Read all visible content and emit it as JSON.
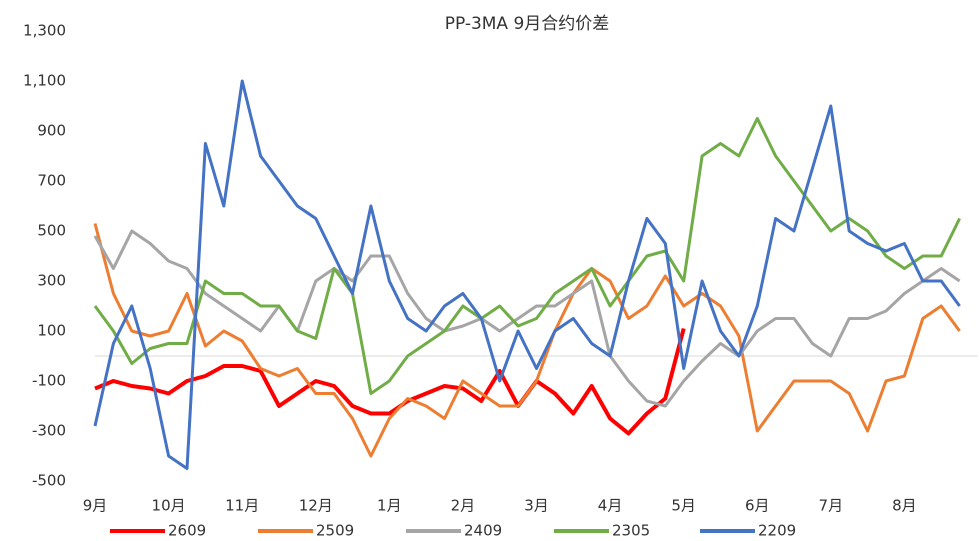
{
  "chart_data": {
    "type": "line",
    "title": "PP-3MA 9月合约价差",
    "categories": [
      "9月",
      null,
      null,
      null,
      "10月",
      null,
      null,
      null,
      "11月",
      null,
      null,
      null,
      "12月",
      null,
      null,
      null,
      "1月",
      null,
      null,
      null,
      "2月",
      null,
      null,
      null,
      "3月",
      null,
      null,
      null,
      "4月",
      null,
      null,
      null,
      "5月",
      null,
      null,
      null,
      "6月",
      null,
      null,
      null,
      "7月",
      null,
      null,
      null,
      "8月",
      null,
      null,
      null
    ],
    "ylim": [
      -500,
      1300
    ],
    "yticks": [
      -500,
      -300,
      -100,
      100,
      300,
      500,
      700,
      900,
      {
        "value": 1100,
        "label": "1,100"
      },
      {
        "value": 1300,
        "label": "1,300"
      }
    ],
    "legend": "bottom",
    "series": [
      {
        "name": "2609",
        "color": "#ff0000",
        "values": [
          -130,
          -100,
          -120,
          -130,
          -150,
          -100,
          -80,
          -40,
          -40,
          -60,
          -200,
          -150,
          -100,
          -120,
          -200,
          -230,
          -230,
          -180,
          -150,
          -120,
          -130,
          -180,
          -60,
          -200,
          -100,
          -150,
          -230,
          -120,
          -250,
          -310,
          -230,
          -170,
          110,
          null,
          null,
          null,
          null,
          null,
          null,
          null,
          null,
          null,
          null,
          null,
          null,
          null,
          null,
          null
        ]
      },
      {
        "name": "2509",
        "color": "#ed7d31",
        "values": [
          530,
          250,
          100,
          80,
          100,
          250,
          40,
          100,
          60,
          -50,
          -80,
          -50,
          -150,
          -150,
          -250,
          -400,
          -250,
          -170,
          -200,
          -250,
          -100,
          -150,
          -200,
          -200,
          -100,
          100,
          250,
          350,
          300,
          150,
          200,
          320,
          200,
          250,
          200,
          80,
          -300,
          -200,
          -100,
          -100,
          -100,
          -150,
          -300,
          -100,
          -80,
          150,
          200,
          100
        ]
      },
      {
        "name": "2409",
        "color": "#a5a5a5",
        "values": [
          480,
          350,
          500,
          450,
          380,
          350,
          250,
          200,
          150,
          100,
          200,
          100,
          300,
          350,
          300,
          400,
          400,
          250,
          150,
          100,
          120,
          150,
          100,
          150,
          200,
          200,
          250,
          300,
          0,
          -100,
          -180,
          -200,
          -100,
          -20,
          50,
          0,
          100,
          150,
          150,
          50,
          0,
          150,
          150,
          180,
          250,
          300,
          350,
          300
        ]
      },
      {
        "name": "2305",
        "color": "#70ad47",
        "values": [
          200,
          100,
          -30,
          30,
          50,
          50,
          300,
          250,
          250,
          200,
          200,
          100,
          70,
          350,
          250,
          -150,
          -100,
          0,
          50,
          100,
          200,
          150,
          200,
          120,
          150,
          250,
          300,
          350,
          200,
          300,
          400,
          420,
          300,
          800,
          850,
          800,
          950,
          800,
          700,
          600,
          500,
          550,
          500,
          400,
          350,
          400,
          400,
          550
        ]
      },
      {
        "name": "2209",
        "color": "#4472c4",
        "values": [
          -280,
          50,
          200,
          -50,
          -400,
          -450,
          850,
          600,
          1100,
          800,
          700,
          600,
          550,
          400,
          250,
          600,
          300,
          150,
          100,
          200,
          250,
          150,
          -100,
          100,
          -50,
          100,
          150,
          50,
          0,
          300,
          550,
          450,
          -50,
          300,
          100,
          0,
          200,
          550,
          500,
          750,
          1000,
          500,
          450,
          420,
          450,
          300,
          300,
          200
        ]
      }
    ]
  }
}
